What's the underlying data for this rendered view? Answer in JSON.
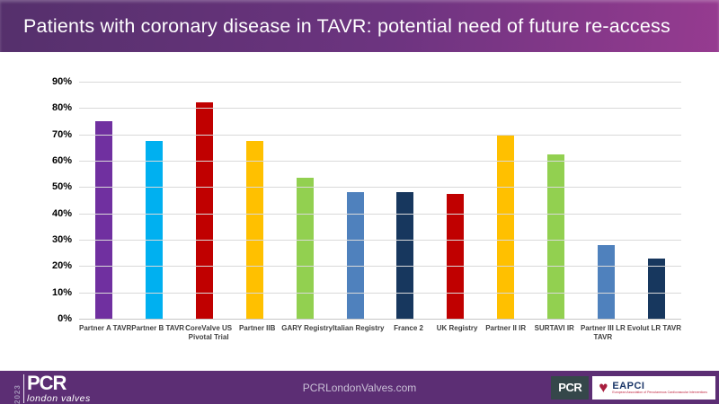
{
  "header": {
    "title": "Patients with coronary disease in TAVR: potential need of future re-access"
  },
  "chart_data": {
    "type": "bar",
    "title": "Patients with coronary disease in TAVR: potential need of future re-access",
    "categories": [
      "Partner A TAVR",
      "Partner B TAVR",
      "CoreValve US\nPivotal Trial",
      "Partner IIB",
      "GARY Registry",
      "Italian Registry",
      "France 2",
      "UK Registry",
      "Partner II IR",
      "SURTAVI IR",
      "Partner III LR\nTAVR",
      "Evolut LR TAVR"
    ],
    "values": [
      75,
      67.5,
      82,
      67.5,
      53.5,
      48,
      48,
      47.5,
      70,
      62.5,
      28,
      23
    ],
    "unit": "%",
    "bar_colors": [
      "#7030A0",
      "#00B0F0",
      "#C00000",
      "#FFC000",
      "#92D050",
      "#4F81BD",
      "#17375E",
      "#C00000",
      "#FFC000",
      "#92D050",
      "#4F81BD",
      "#17375E"
    ],
    "xlabel": "",
    "ylabel": "",
    "ylim": [
      0,
      90
    ],
    "y_tick_labels": [
      "0%",
      "10%",
      "20%",
      "30%",
      "40%",
      "50%",
      "60%",
      "70%",
      "80%",
      "90%"
    ],
    "grid": "horizontal",
    "legend": "none"
  },
  "footer": {
    "brand_year": "2023",
    "brand_name": "PCR",
    "brand_sub": "london valves",
    "website": "PCRLondonValves.com",
    "pcr_logo_label": "PCR",
    "eapci_label": "EAPCI",
    "eapci_subtext": "European Association of Percutaneous Cardiovascular Interventions",
    "heart_icon_glyph": "♥"
  },
  "colors": {
    "header_gradient_left": "#55306C",
    "header_gradient_mid": "#6D3480",
    "header_gradient_right": "#963B90",
    "footer_background": "#5C2E74",
    "gridline": "#D9D9D9",
    "axis_label": "#000000",
    "category_label": "#3F3F3F",
    "title_text": "#FFFFFF"
  }
}
